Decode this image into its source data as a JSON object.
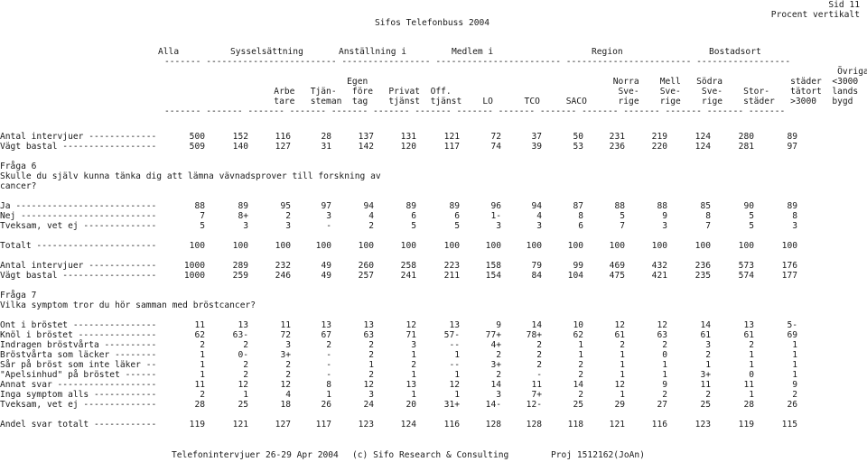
{
  "page": {
    "title": "Sifos Telefonbuss 2004",
    "page_number": "Sid 11",
    "subtitle": "Procent vertikalt"
  },
  "columns": {
    "groups": [
      "Alla",
      "Sysselsättning",
      "Anställning i",
      "Medlem i",
      "Region",
      "Bostadsort"
    ],
    "header_rows": [
      "                                                                                                                                 Övriga  Tätort",
      "                                   Egen                                               Norra    Mell   Södra             städer  <3000",
      "                     Arbe   Tjän-   före   Privat  Off.                                Sve-    Sve-    Sve-    Stor-    tätort  lands",
      "                     tare   steman  tag    tjänst  tjänst    LO      TCO     SACO      rige    rige    rige    städer   >3000   bygd"
    ]
  },
  "blocks": [
    {
      "counts": [
        {
          "label": "Antal intervjuer -------------",
          "values": [
            "500",
            "152",
            "116",
            "28",
            "137",
            "131",
            "121",
            "72",
            "37",
            "50",
            "231",
            "219",
            "124",
            "280",
            "89"
          ]
        },
        {
          "label": "Vägt bastal ------------------",
          "values": [
            "509",
            "140",
            "127",
            "31",
            "142",
            "120",
            "117",
            "74",
            "39",
            "53",
            "236",
            "220",
            "124",
            "281",
            "97"
          ]
        }
      ],
      "question_id": "Fråga 6",
      "question_text": [
        "Skulle du själv kunna tänka dig att lämna vävnadsprover till forskning av",
        "cancer?"
      ],
      "rows": [
        {
          "label": "Ja ---------------------------",
          "values": [
            "88",
            "89",
            "95",
            "97",
            "94",
            "89",
            "89",
            "96",
            "94",
            "87",
            "88",
            "88",
            "85",
            "90",
            "89"
          ]
        },
        {
          "label": "Nej --------------------------",
          "values": [
            "7",
            "8+",
            "2",
            "3",
            "4",
            "6",
            "6",
            "1-",
            "4",
            "8",
            "5",
            "9",
            "8",
            "5",
            "8"
          ]
        },
        {
          "label": "Tveksam, vet ej --------------",
          "values": [
            "5",
            "3",
            "3",
            "-",
            "2",
            "5",
            "5",
            "3",
            "3",
            "6",
            "7",
            "3",
            "7",
            "5",
            "3"
          ]
        }
      ],
      "total": {
        "label": "Totalt -----------------------",
        "values": [
          "100",
          "100",
          "100",
          "100",
          "100",
          "100",
          "100",
          "100",
          "100",
          "100",
          "100",
          "100",
          "100",
          "100",
          "100"
        ]
      }
    },
    {
      "counts": [
        {
          "label": "Antal intervjuer -------------",
          "values": [
            "1000",
            "289",
            "232",
            "49",
            "260",
            "258",
            "223",
            "158",
            "79",
            "99",
            "469",
            "432",
            "236",
            "573",
            "176"
          ]
        },
        {
          "label": "Vägt bastal ------------------",
          "values": [
            "1000",
            "259",
            "246",
            "49",
            "257",
            "241",
            "211",
            "154",
            "84",
            "104",
            "475",
            "421",
            "235",
            "574",
            "177"
          ]
        }
      ],
      "question_id": "Fråga 7",
      "question_text": [
        "Vilka symptom tror du hör samman med bröstcancer?"
      ],
      "rows": [
        {
          "label": "Ont i bröstet ----------------",
          "values": [
            "11",
            "13",
            "11",
            "13",
            "13",
            "12",
            "13",
            "9",
            "14",
            "10",
            "12",
            "12",
            "14",
            "13",
            "5-"
          ]
        },
        {
          "label": "Knöl i bröstet ---------------",
          "values": [
            "62",
            "63-",
            "72",
            "67",
            "63",
            "71",
            "57-",
            "77+",
            "78+",
            "62",
            "61",
            "63",
            "61",
            "61",
            "69"
          ]
        },
        {
          "label": "Indragen bröstvårta ----------",
          "values": [
            "2",
            "2",
            "3",
            "2",
            "2",
            "3",
            "--",
            "4+",
            "2",
            "1",
            "2",
            "2",
            "3",
            "2",
            "1"
          ]
        },
        {
          "label": "Bröstvårta som läcker --------",
          "values": [
            "1",
            "0-",
            "3+",
            "-",
            "2",
            "1",
            "1",
            "2",
            "2",
            "1",
            "1",
            "0",
            "2",
            "1",
            "1"
          ]
        },
        {
          "label": "Sår på bröst som inte läker --",
          "values": [
            "1",
            "2",
            "2",
            "-",
            "1",
            "2",
            "--",
            "3+",
            "2",
            "2",
            "1",
            "1",
            "1",
            "1",
            "1"
          ]
        },
        {
          "label": "\"Apelsinhud\" på bröstet ------",
          "values": [
            "1",
            "2",
            "2",
            "-",
            "2",
            "1",
            "1",
            "2",
            "-",
            "2",
            "1",
            "1",
            "3+",
            "0",
            "1"
          ]
        },
        {
          "label": "Annat svar -------------------",
          "values": [
            "11",
            "12",
            "12",
            "8",
            "12",
            "13",
            "12",
            "14",
            "11",
            "14",
            "12",
            "9",
            "11",
            "11",
            "9"
          ]
        },
        {
          "label": "Inga symptom alls ------------",
          "values": [
            "2",
            "1",
            "4",
            "1",
            "3",
            "1",
            "1",
            "3",
            "7+",
            "2",
            "1",
            "2",
            "2",
            "1",
            "2"
          ]
        },
        {
          "label": "Tveksam, vet ej --------------",
          "values": [
            "28",
            "25",
            "18",
            "26",
            "24",
            "20",
            "31+",
            "14-",
            "12-",
            "25",
            "29",
            "27",
            "25",
            "28",
            "26"
          ]
        }
      ],
      "total": {
        "label": "Andel svar totalt ------------",
        "values": [
          "119",
          "121",
          "127",
          "117",
          "123",
          "124",
          "116",
          "128",
          "128",
          "118",
          "121",
          "116",
          "123",
          "119",
          "115"
        ]
      }
    }
  ],
  "footer": {
    "interview_period": "Telefonintervjuer 26-29 Apr 2004",
    "copyright": "(c) Sifo Research & Consulting",
    "project": "Proj 1512162(JoAn)"
  }
}
